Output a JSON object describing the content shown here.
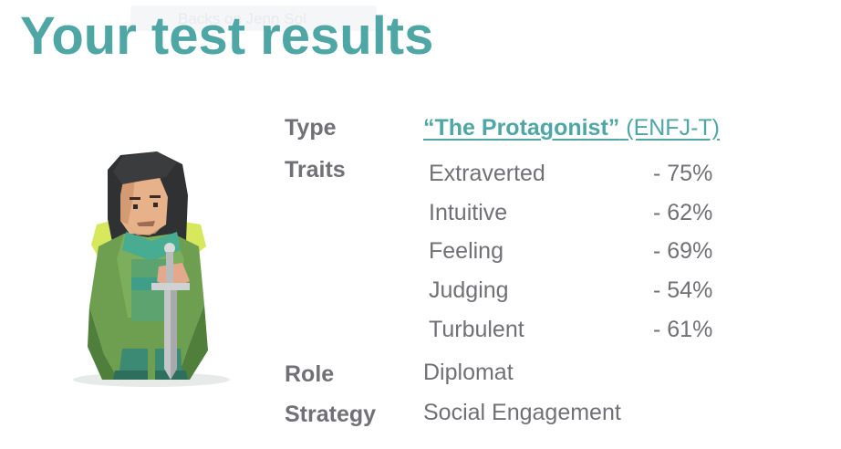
{
  "page": {
    "title": "Your test results",
    "ghost_text": "Backs on Jenn Sol"
  },
  "results": {
    "type_label": "Type",
    "type_name": "“The Protagonist”",
    "type_code": "(ENFJ-T)",
    "traits_label": "Traits",
    "traits": [
      {
        "name": "Extraverted",
        "value": "-  75%"
      },
      {
        "name": "Intuitive",
        "value": "-  62%"
      },
      {
        "name": "Feeling",
        "value": "-  69%"
      },
      {
        "name": "Judging",
        "value": "-  54%"
      },
      {
        "name": "Turbulent",
        "value": "-  61%"
      }
    ],
    "role_label": "Role",
    "role_value": "Diplomat",
    "strategy_label": "Strategy",
    "strategy_value": "Social Engagement"
  },
  "colors": {
    "accent": "#4ea6a5",
    "text": "#707076"
  },
  "icons": {
    "hero": "protagonist-knight-illustration"
  }
}
